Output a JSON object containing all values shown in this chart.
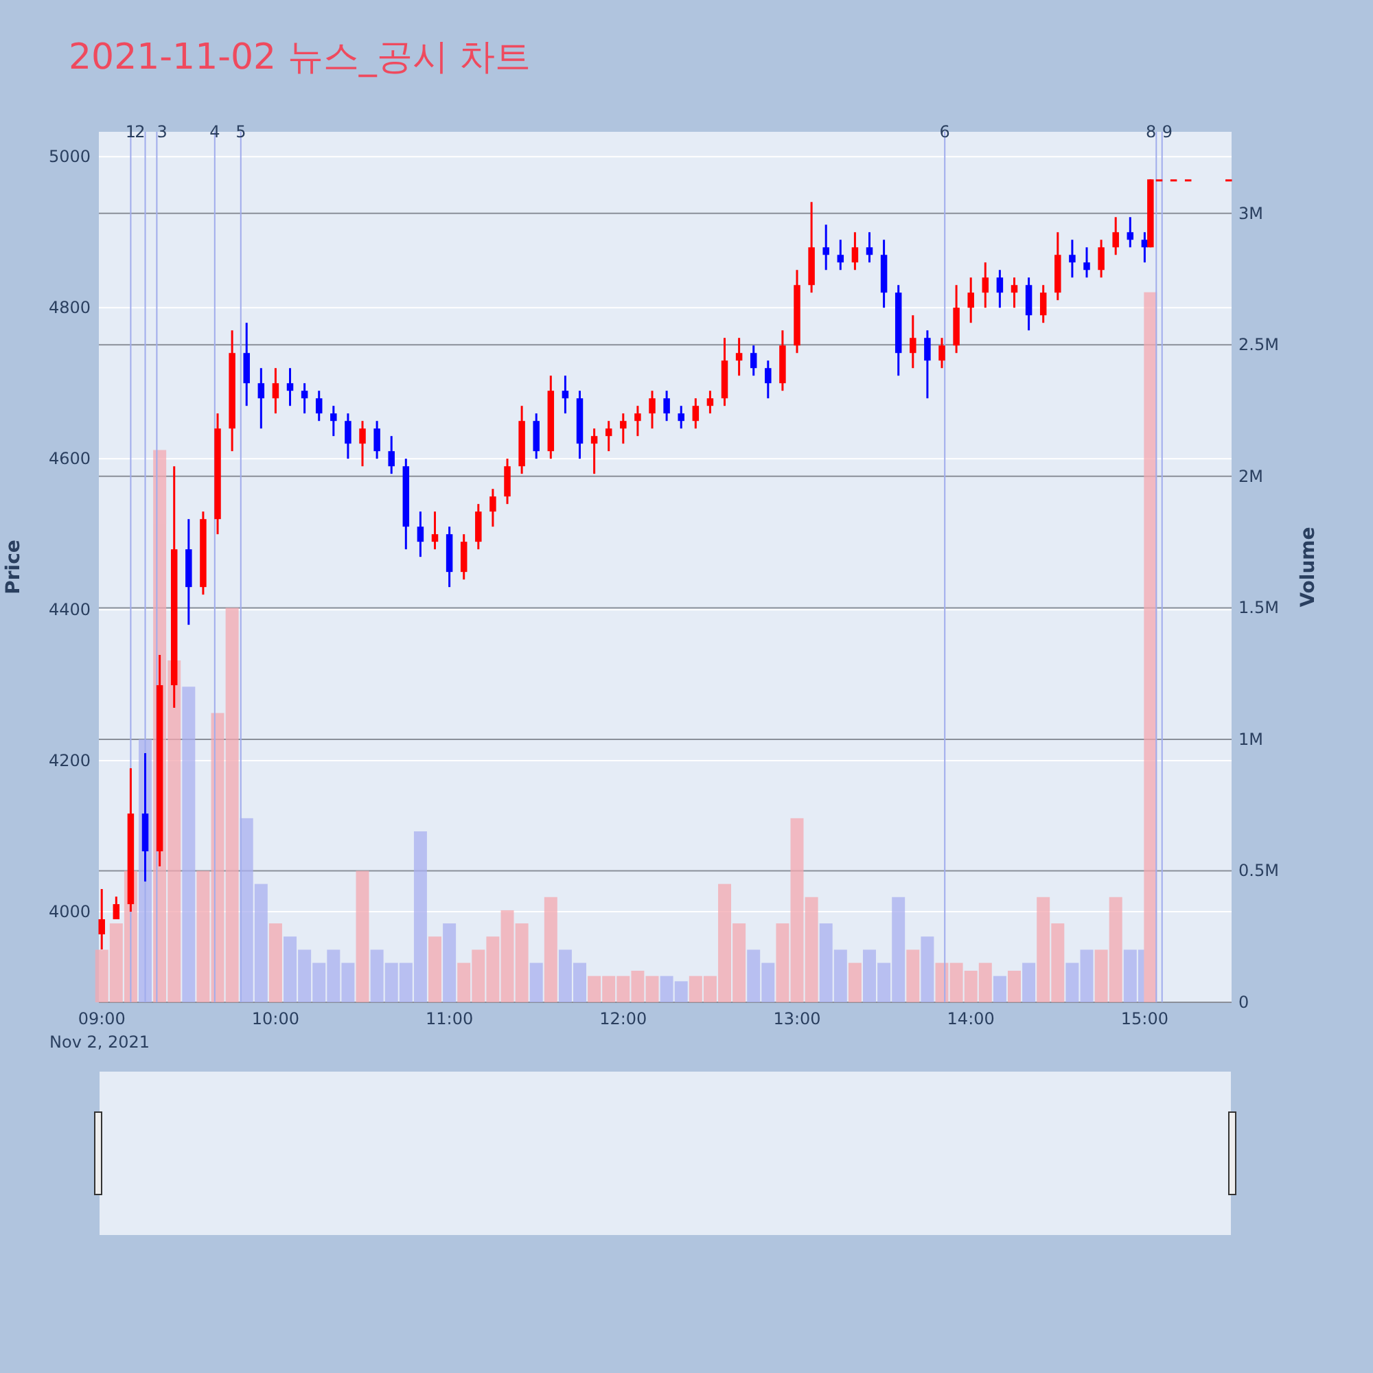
{
  "chart_data": {
    "type": "candlestick",
    "title": "2021-11-02 뉴스_공시 차트",
    "ylabel": "Price",
    "y2label": "Volume",
    "annotations": [
      "Nov 2, 2021"
    ],
    "x": [
      "2021-11-02T09:00",
      "2021-11-02T09:05",
      "2021-11-02T09:10",
      "2021-11-02T09:15",
      "2021-11-02T09:20",
      "2021-11-02T09:25",
      "2021-11-02T09:30",
      "2021-11-02T09:35",
      "2021-11-02T09:40",
      "2021-11-02T09:45",
      "2021-11-02T09:50",
      "2021-11-02T09:55",
      "2021-11-02T10:00",
      "2021-11-02T10:05",
      "2021-11-02T10:10",
      "2021-11-02T10:15",
      "2021-11-02T10:20",
      "2021-11-02T10:25",
      "2021-11-02T10:30",
      "2021-11-02T10:35",
      "2021-11-02T10:40",
      "2021-11-02T10:45",
      "2021-11-02T10:50",
      "2021-11-02T10:55",
      "2021-11-02T11:00",
      "2021-11-02T11:05",
      "2021-11-02T11:10",
      "2021-11-02T11:15",
      "2021-11-02T11:20",
      "2021-11-02T11:25",
      "2021-11-02T11:30",
      "2021-11-02T11:35",
      "2021-11-02T11:40",
      "2021-11-02T11:45",
      "2021-11-02T11:50",
      "2021-11-02T11:55",
      "2021-11-02T12:00",
      "2021-11-02T12:05",
      "2021-11-02T12:10",
      "2021-11-02T12:15",
      "2021-11-02T12:20",
      "2021-11-02T12:25",
      "2021-11-02T12:30",
      "2021-11-02T12:35",
      "2021-11-02T12:40",
      "2021-11-02T12:45",
      "2021-11-02T12:50",
      "2021-11-02T12:55",
      "2021-11-02T13:00",
      "2021-11-02T13:05",
      "2021-11-02T13:10",
      "2021-11-02T13:15",
      "2021-11-02T13:20",
      "2021-11-02T13:25",
      "2021-11-02T13:30",
      "2021-11-02T13:35",
      "2021-11-02T13:40",
      "2021-11-02T13:45",
      "2021-11-02T13:50",
      "2021-11-02T13:55",
      "2021-11-02T14:00",
      "2021-11-02T14:05",
      "2021-11-02T14:10",
      "2021-11-02T14:15",
      "2021-11-02T14:20",
      "2021-11-02T14:25",
      "2021-11-02T14:30",
      "2021-11-02T14:35",
      "2021-11-02T14:40",
      "2021-11-02T14:45",
      "2021-11-02T14:50",
      "2021-11-02T14:55",
      "2021-11-02T15:00",
      "2021-11-02T15:02",
      "2021-11-02T15:05",
      "2021-11-02T15:10",
      "2021-11-02T15:15",
      "2021-11-02T15:29"
    ],
    "ohlc": [
      [
        3970,
        4030,
        3950,
        3990
      ],
      [
        3990,
        4020,
        3990,
        4010
      ],
      [
        4010,
        4190,
        4000,
        4130
      ],
      [
        4130,
        4210,
        4040,
        4080
      ],
      [
        4080,
        4340,
        4060,
        4300
      ],
      [
        4300,
        4590,
        4270,
        4480
      ],
      [
        4480,
        4520,
        4380,
        4430
      ],
      [
        4430,
        4530,
        4420,
        4520
      ],
      [
        4520,
        4660,
        4500,
        4640
      ],
      [
        4640,
        4770,
        4610,
        4740
      ],
      [
        4740,
        4780,
        4670,
        4700
      ],
      [
        4700,
        4720,
        4640,
        4680
      ],
      [
        4680,
        4720,
        4660,
        4700
      ],
      [
        4700,
        4720,
        4670,
        4690
      ],
      [
        4690,
        4700,
        4660,
        4680
      ],
      [
        4680,
        4690,
        4650,
        4660
      ],
      [
        4660,
        4670,
        4630,
        4650
      ],
      [
        4650,
        4660,
        4600,
        4620
      ],
      [
        4620,
        4650,
        4590,
        4640
      ],
      [
        4640,
        4650,
        4600,
        4610
      ],
      [
        4610,
        4630,
        4580,
        4590
      ],
      [
        4590,
        4600,
        4480,
        4510
      ],
      [
        4510,
        4530,
        4470,
        4490
      ],
      [
        4490,
        4530,
        4480,
        4500
      ],
      [
        4500,
        4510,
        4430,
        4450
      ],
      [
        4450,
        4500,
        4440,
        4490
      ],
      [
        4490,
        4540,
        4480,
        4530
      ],
      [
        4530,
        4560,
        4510,
        4550
      ],
      [
        4550,
        4600,
        4540,
        4590
      ],
      [
        4590,
        4670,
        4580,
        4650
      ],
      [
        4650,
        4660,
        4600,
        4610
      ],
      [
        4610,
        4710,
        4600,
        4690
      ],
      [
        4690,
        4710,
        4660,
        4680
      ],
      [
        4680,
        4690,
        4600,
        4620
      ],
      [
        4620,
        4640,
        4580,
        4630
      ],
      [
        4630,
        4650,
        4610,
        4640
      ],
      [
        4640,
        4660,
        4620,
        4650
      ],
      [
        4650,
        4670,
        4630,
        4660
      ],
      [
        4660,
        4690,
        4640,
        4680
      ],
      [
        4680,
        4690,
        4650,
        4660
      ],
      [
        4660,
        4670,
        4640,
        4650
      ],
      [
        4650,
        4680,
        4640,
        4670
      ],
      [
        4670,
        4690,
        4660,
        4680
      ],
      [
        4680,
        4760,
        4670,
        4730
      ],
      [
        4730,
        4760,
        4710,
        4740
      ],
      [
        4740,
        4750,
        4710,
        4720
      ],
      [
        4720,
        4730,
        4680,
        4700
      ],
      [
        4700,
        4770,
        4690,
        4750
      ],
      [
        4750,
        4850,
        4740,
        4830
      ],
      [
        4830,
        4940,
        4820,
        4880
      ],
      [
        4880,
        4910,
        4850,
        4870
      ],
      [
        4870,
        4890,
        4850,
        4860
      ],
      [
        4860,
        4900,
        4850,
        4880
      ],
      [
        4880,
        4900,
        4860,
        4870
      ],
      [
        4870,
        4890,
        4800,
        4820
      ],
      [
        4820,
        4830,
        4710,
        4740
      ],
      [
        4740,
        4790,
        4720,
        4760
      ],
      [
        4760,
        4770,
        4680,
        4730
      ],
      [
        4730,
        4760,
        4720,
        4750
      ],
      [
        4750,
        4830,
        4740,
        4800
      ],
      [
        4800,
        4840,
        4780,
        4820
      ],
      [
        4820,
        4860,
        4800,
        4840
      ],
      [
        4840,
        4850,
        4800,
        4820
      ],
      [
        4820,
        4840,
        4800,
        4830
      ],
      [
        4830,
        4840,
        4770,
        4790
      ],
      [
        4790,
        4830,
        4780,
        4820
      ],
      [
        4820,
        4900,
        4810,
        4870
      ],
      [
        4870,
        4890,
        4840,
        4860
      ],
      [
        4860,
        4880,
        4840,
        4850
      ],
      [
        4850,
        4890,
        4840,
        4880
      ],
      [
        4880,
        4920,
        4870,
        4900
      ],
      [
        4900,
        4920,
        4880,
        4890
      ],
      [
        4890,
        4900,
        4860,
        4880
      ],
      [
        4880,
        4970,
        4880,
        4970
      ],
      [
        4970,
        4970,
        4970,
        4970
      ],
      [
        4970,
        4970,
        4970,
        4970
      ],
      [
        4970,
        4970,
        4970,
        4970
      ],
      [
        4970,
        4970,
        4970,
        4970
      ]
    ],
    "colors": [
      "#ff0000",
      "#ff0000",
      "#ff0000",
      "#0000ff",
      "#ff0000",
      "#ff0000",
      "#0000ff",
      "#ff0000",
      "#ff0000",
      "#ff0000",
      "#0000ff",
      "#0000ff",
      "#ff0000",
      "#0000ff",
      "#0000ff",
      "#0000ff",
      "#0000ff",
      "#0000ff",
      "#ff0000",
      "#0000ff",
      "#0000ff",
      "#0000ff",
      "#0000ff",
      "#ff0000",
      "#0000ff",
      "#ff0000",
      "#ff0000",
      "#ff0000",
      "#ff0000",
      "#ff0000",
      "#0000ff",
      "#ff0000",
      "#0000ff",
      "#0000ff",
      "#ff0000",
      "#ff0000",
      "#ff0000",
      "#ff0000",
      "#ff0000",
      "#0000ff",
      "#0000ff",
      "#ff0000",
      "#ff0000",
      "#ff0000",
      "#ff0000",
      "#0000ff",
      "#0000ff",
      "#ff0000",
      "#ff0000",
      "#ff0000",
      "#0000ff",
      "#0000ff",
      "#ff0000",
      "#0000ff",
      "#0000ff",
      "#0000ff",
      "#ff0000",
      "#0000ff",
      "#ff0000",
      "#ff0000",
      "#ff0000",
      "#ff0000",
      "#0000ff",
      "#ff0000",
      "#0000ff",
      "#ff0000",
      "#ff0000",
      "#0000ff",
      "#0000ff",
      "#ff0000",
      "#ff0000",
      "#0000ff",
      "#0000ff",
      "#ff0000",
      "#ff0000",
      "#ff0000",
      "#ff0000",
      "#ff0000"
    ],
    "series": [
      {
        "type": "bar",
        "axis": "y2",
        "values": [
          200000,
          300000,
          500000,
          1000000,
          2100000,
          1300000,
          1200000,
          500000,
          1100000,
          1500000,
          700000,
          450000,
          300000,
          250000,
          200000,
          150000,
          200000,
          150000,
          500000,
          200000,
          150000,
          150000,
          650000,
          250000,
          300000,
          150000,
          200000,
          250000,
          350000,
          300000,
          150000,
          400000,
          200000,
          150000,
          100000,
          100000,
          100000,
          120000,
          100000,
          100000,
          80000,
          100000,
          100000,
          450000,
          300000,
          200000,
          150000,
          300000,
          700000,
          400000,
          300000,
          200000,
          150000,
          200000,
          150000,
          400000,
          200000,
          250000,
          150000,
          150000,
          120000,
          150000,
          100000,
          120000,
          150000,
          400000,
          300000,
          150000,
          200000,
          200000,
          400000,
          200000,
          200000,
          2700000,
          0,
          0,
          0,
          0
        ],
        "colors": [
          "#f4a8b0",
          "#f4a8b0",
          "#f4a8b0",
          "#aab0f0",
          "#f4a8b0",
          "#f4a8b0",
          "#aab0f0",
          "#f4a8b0",
          "#f4a8b0",
          "#f4a8b0",
          "#aab0f0",
          "#aab0f0",
          "#f4a8b0",
          "#aab0f0",
          "#aab0f0",
          "#aab0f0",
          "#aab0f0",
          "#aab0f0",
          "#f4a8b0",
          "#aab0f0",
          "#aab0f0",
          "#aab0f0",
          "#aab0f0",
          "#f4a8b0",
          "#aab0f0",
          "#f4a8b0",
          "#f4a8b0",
          "#f4a8b0",
          "#f4a8b0",
          "#f4a8b0",
          "#aab0f0",
          "#f4a8b0",
          "#aab0f0",
          "#aab0f0",
          "#f4a8b0",
          "#f4a8b0",
          "#f4a8b0",
          "#f4a8b0",
          "#f4a8b0",
          "#aab0f0",
          "#aab0f0",
          "#f4a8b0",
          "#f4a8b0",
          "#f4a8b0",
          "#f4a8b0",
          "#aab0f0",
          "#aab0f0",
          "#f4a8b0",
          "#f4a8b0",
          "#f4a8b0",
          "#aab0f0",
          "#aab0f0",
          "#f4a8b0",
          "#aab0f0",
          "#aab0f0",
          "#aab0f0",
          "#f4a8b0",
          "#aab0f0",
          "#f4a8b0",
          "#f4a8b0",
          "#f4a8b0",
          "#f4a8b0",
          "#aab0f0",
          "#f4a8b0",
          "#aab0f0",
          "#f4a8b0",
          "#f4a8b0",
          "#aab0f0",
          "#aab0f0",
          "#f4a8b0",
          "#f4a8b0",
          "#aab0f0",
          "#aab0f0",
          "#f4a8b0",
          "#f4a8b0",
          "#f4a8b0",
          "#f4a8b0",
          "#f4a8b0"
        ]
      }
    ],
    "xlim": [
      "2021-11-02T08:59",
      "2021-11-02T15:30"
    ],
    "xticks": [
      {
        "value": "2021-11-02T09:00",
        "label": "09:00"
      },
      {
        "value": "2021-11-02T10:00",
        "label": "10:00"
      },
      {
        "value": "2021-11-02T11:00",
        "label": "11:00"
      },
      {
        "value": "2021-11-02T12:00",
        "label": "12:00"
      },
      {
        "value": "2021-11-02T13:00",
        "label": "13:00"
      },
      {
        "value": "2021-11-02T14:00",
        "label": "14:00"
      },
      {
        "value": "2021-11-02T15:00",
        "label": "15:00"
      }
    ],
    "ylim": [
      3880,
      5033
    ],
    "yticks": [
      4000,
      4200,
      4400,
      4600,
      4800,
      5000
    ],
    "y2lim": [
      0,
      3310000
    ],
    "y2ticks": [
      0,
      {
        "value": 500000,
        "label": "0.5M"
      },
      {
        "value": 1000000,
        "label": "1M"
      },
      {
        "value": 1500000,
        "label": "1.5M"
      },
      {
        "value": 2000000,
        "label": "2M"
      },
      {
        "value": 2500000,
        "label": "2.5M"
      },
      {
        "value": 3000000,
        "label": "3M"
      }
    ],
    "ref_lines": [
      {
        "axis": "x",
        "value": "2021-11-02T09:10",
        "label": "1",
        "color": "#a0acec"
      },
      {
        "axis": "x",
        "value": "2021-11-02T09:15",
        "label": "2",
        "color": "#a0acec"
      },
      {
        "axis": "x",
        "value": "2021-11-02T09:19",
        "label": "3",
        "color": "#a0acec"
      },
      {
        "axis": "x",
        "value": "2021-11-02T09:39",
        "label": "4",
        "color": "#a0acec"
      },
      {
        "axis": "x",
        "value": "2021-11-02T09:48",
        "label": "5",
        "color": "#a0acec"
      },
      {
        "axis": "x",
        "value": "2021-11-02T13:51",
        "label": "6",
        "color": "#a0acec"
      },
      {
        "axis": "x",
        "value": "2021-11-02T15:04",
        "label": "8",
        "color": "#a0acec"
      },
      {
        "axis": "x",
        "value": "2021-11-02T15:06",
        "label": "9",
        "color": "#a0acec"
      }
    ],
    "grid": "y"
  }
}
